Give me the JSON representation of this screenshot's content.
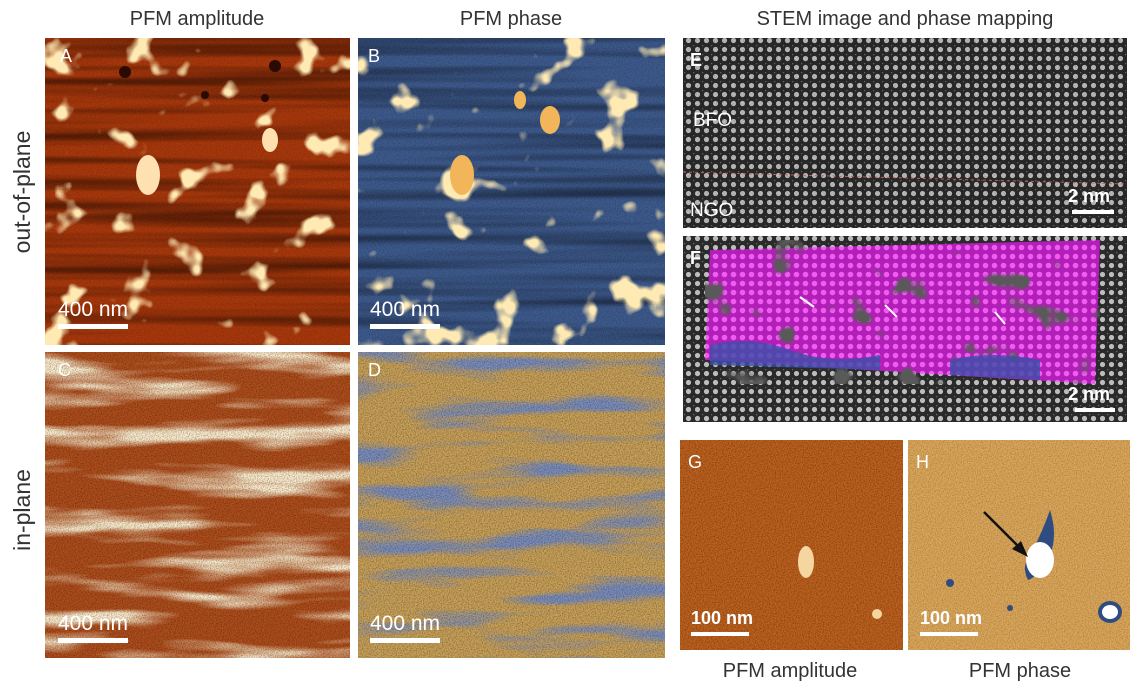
{
  "column_headers": [
    "PFM amplitude",
    "PFM phase",
    "STEM image and phase mapping"
  ],
  "row_labels": [
    "out-of-plane",
    "in-plane"
  ],
  "panels": [
    {
      "letter": "A",
      "scale_bar": "400 nm"
    },
    {
      "letter": "B",
      "scale_bar": "400 nm"
    },
    {
      "letter": "C",
      "scale_bar": "400 nm"
    },
    {
      "letter": "D",
      "scale_bar": "400 nm"
    },
    {
      "letter": "E",
      "scale_bar": "2 nm",
      "labels": [
        "BFO",
        "NGO"
      ]
    },
    {
      "letter": "F",
      "scale_bar": "2 nm"
    },
    {
      "letter": "G",
      "scale_bar": "100 nm"
    },
    {
      "letter": "H",
      "scale_bar": "100 nm"
    }
  ],
  "bottom_labels": [
    "PFM amplitude",
    "PFM phase"
  ]
}
